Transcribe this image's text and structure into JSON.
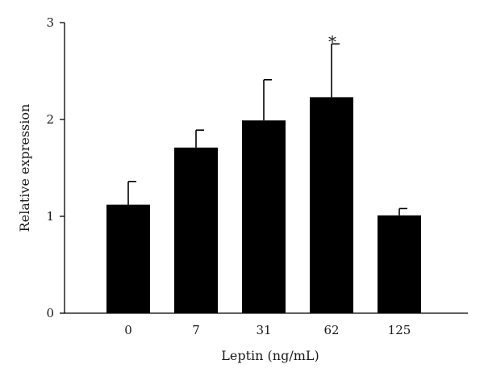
{
  "chart_data": {
    "type": "bar",
    "categories": [
      "0",
      "7",
      "31",
      "62",
      "125"
    ],
    "values": [
      1.12,
      1.71,
      1.99,
      2.23,
      1.01
    ],
    "error_upper": [
      0.24,
      0.18,
      0.42,
      0.55,
      0.07
    ],
    "annotations": [
      {
        "category": "62",
        "text": "*"
      }
    ],
    "title": "",
    "xlabel": "Leptin (ng/mL)",
    "ylabel": "Relative expression",
    "ylim": [
      0,
      3
    ],
    "yticks": [
      "0",
      "1",
      "2",
      "3"
    ],
    "grid": false,
    "bar_color": "#000000"
  }
}
